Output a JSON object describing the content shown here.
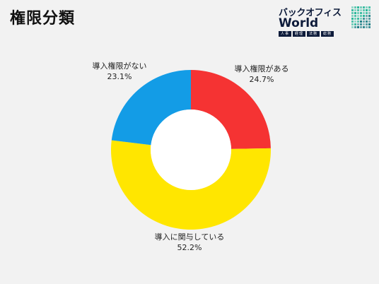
{
  "title": "権限分類",
  "logo": {
    "line1": "バックオフィス",
    "line2": "World",
    "tags": [
      "人事",
      "経理",
      "法務",
      "総務"
    ]
  },
  "chart_data": {
    "type": "pie",
    "donut": true,
    "slices": [
      {
        "label": "導入権限がある",
        "value": 24.7,
        "value_text": "24.7%",
        "color": "#f53333"
      },
      {
        "label": "導入に関与している",
        "value": 52.2,
        "value_text": "52.2%",
        "color": "#ffe600"
      },
      {
        "label": "導入権限がない",
        "value": 23.1,
        "value_text": "23.1%",
        "color": "#139ce6"
      }
    ]
  }
}
